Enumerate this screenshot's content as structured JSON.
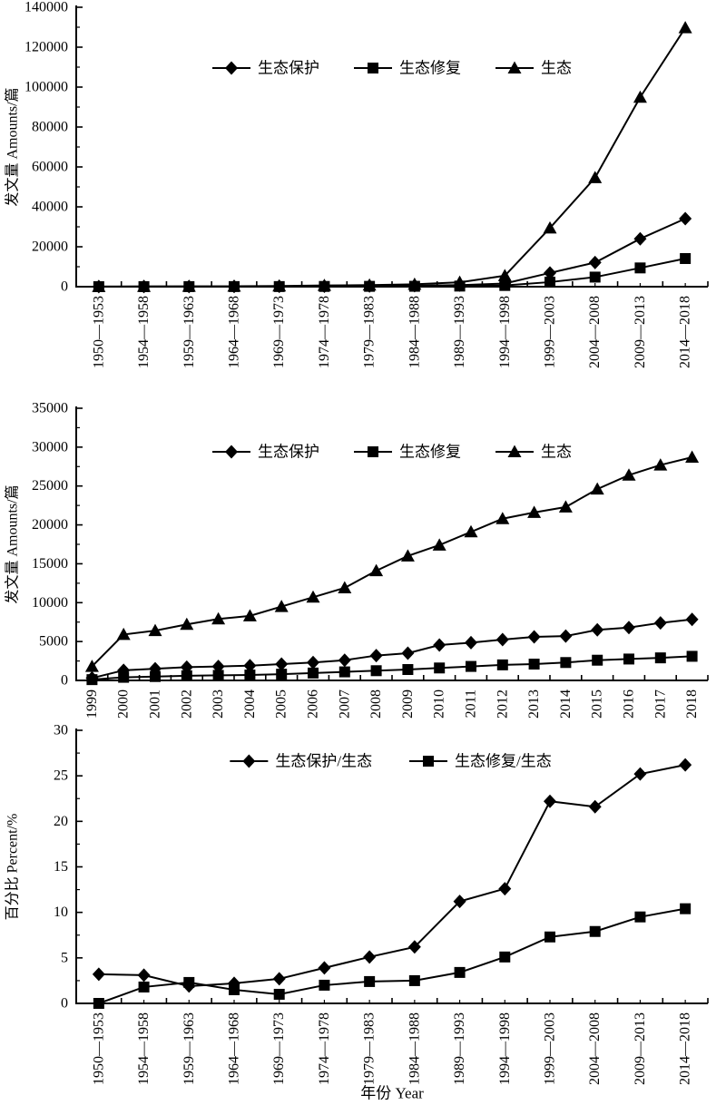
{
  "page": {
    "background": "#ffffff",
    "ink_color": "#000000",
    "x_axis_title": "年份 Year"
  },
  "chart_data": [
    {
      "id": "publications-by-period",
      "type": "line",
      "title": "",
      "ylabel": "发文量 Amounts/篇",
      "xlabel": "",
      "ylim": [
        0,
        140000
      ],
      "ytick_step": 20000,
      "yticks": [
        0,
        20000,
        40000,
        60000,
        80000,
        100000,
        120000,
        140000
      ],
      "grid": false,
      "legend_position": "top-center-inside",
      "categories": [
        "1950—1953",
        "1954—1958",
        "1959—1963",
        "1964—1968",
        "1969—1973",
        "1974—1978",
        "1979—1983",
        "1984—1988",
        "1989—1993",
        "1994—1998",
        "1999—2003",
        "2004—2008",
        "2009—2013",
        "2014—2018"
      ],
      "series": [
        {
          "name": "生态保护",
          "marker": "diamond",
          "values": [
            30,
            60,
            80,
            100,
            150,
            250,
            350,
            500,
            800,
            1600,
            6900,
            12100,
            24000,
            34100
          ]
        },
        {
          "name": "生态修复",
          "marker": "square",
          "values": [
            10,
            30,
            40,
            50,
            60,
            120,
            170,
            200,
            300,
            600,
            2300,
            4800,
            9400,
            14100
          ]
        },
        {
          "name": "生态",
          "marker": "triangle",
          "values": [
            60,
            120,
            150,
            200,
            350,
            600,
            800,
            1200,
            2200,
            5500,
            29400,
            54600,
            94900,
            129700
          ]
        }
      ]
    },
    {
      "id": "publications-by-year",
      "type": "line",
      "title": "",
      "ylabel": "发文量 Amounts/篇",
      "xlabel": "",
      "ylim": [
        0,
        35000
      ],
      "ytick_step": 5000,
      "yticks": [
        0,
        5000,
        10000,
        15000,
        20000,
        25000,
        30000,
        35000
      ],
      "grid": false,
      "legend_position": "top-center-inside",
      "categories": [
        "1999",
        "2000",
        "2001",
        "2002",
        "2003",
        "2004",
        "2005",
        "2006",
        "2007",
        "2008",
        "2009",
        "2010",
        "2011",
        "2012",
        "2013",
        "2014",
        "2015",
        "2016",
        "2017",
        "2018"
      ],
      "series": [
        {
          "name": "生态保护",
          "marker": "diamond",
          "values": [
            300,
            1300,
            1500,
            1700,
            1800,
            1900,
            2100,
            2300,
            2600,
            3200,
            3500,
            4550,
            4850,
            5250,
            5600,
            5700,
            6500,
            6800,
            7400,
            7850
          ]
        },
        {
          "name": "生态修复",
          "marker": "square",
          "values": [
            100,
            400,
            500,
            600,
            650,
            700,
            800,
            950,
            1100,
            1250,
            1400,
            1600,
            1800,
            2000,
            2100,
            2300,
            2600,
            2750,
            2900,
            3100
          ]
        },
        {
          "name": "生态",
          "marker": "triangle",
          "values": [
            1800,
            5900,
            6400,
            7200,
            7900,
            8300,
            9500,
            10700,
            11900,
            14100,
            16000,
            17400,
            19100,
            20800,
            21600,
            22300,
            24600,
            26400,
            27700,
            28700
          ]
        }
      ]
    },
    {
      "id": "percent-by-period",
      "type": "line",
      "title": "",
      "ylabel": "百分比 Percent/%",
      "xlabel": "年份 Year",
      "ylim": [
        0,
        30
      ],
      "ytick_step": 5,
      "yticks": [
        0,
        5,
        10,
        15,
        20,
        25,
        30
      ],
      "grid": false,
      "legend_position": "top-center-inside",
      "categories": [
        "1950—1953",
        "1954—1958",
        "1959—1963",
        "1964—1968",
        "1969—1973",
        "1974—1978",
        "1979—1983",
        "1984—1988",
        "1989—1993",
        "1994—1998",
        "1999—2003",
        "2004—2008",
        "2009—2013",
        "2014—2018"
      ],
      "series": [
        {
          "name": "生态保护/生态",
          "marker": "diamond",
          "values": [
            3.2,
            3.1,
            1.9,
            2.2,
            2.7,
            3.9,
            5.1,
            6.2,
            11.2,
            12.6,
            22.2,
            21.6,
            25.2,
            26.2
          ]
        },
        {
          "name": "生态修复/生态",
          "marker": "square",
          "values": [
            0.0,
            1.8,
            2.3,
            1.5,
            1.0,
            2.0,
            2.4,
            2.5,
            3.4,
            5.1,
            7.3,
            7.9,
            9.5,
            10.4
          ]
        }
      ]
    }
  ]
}
